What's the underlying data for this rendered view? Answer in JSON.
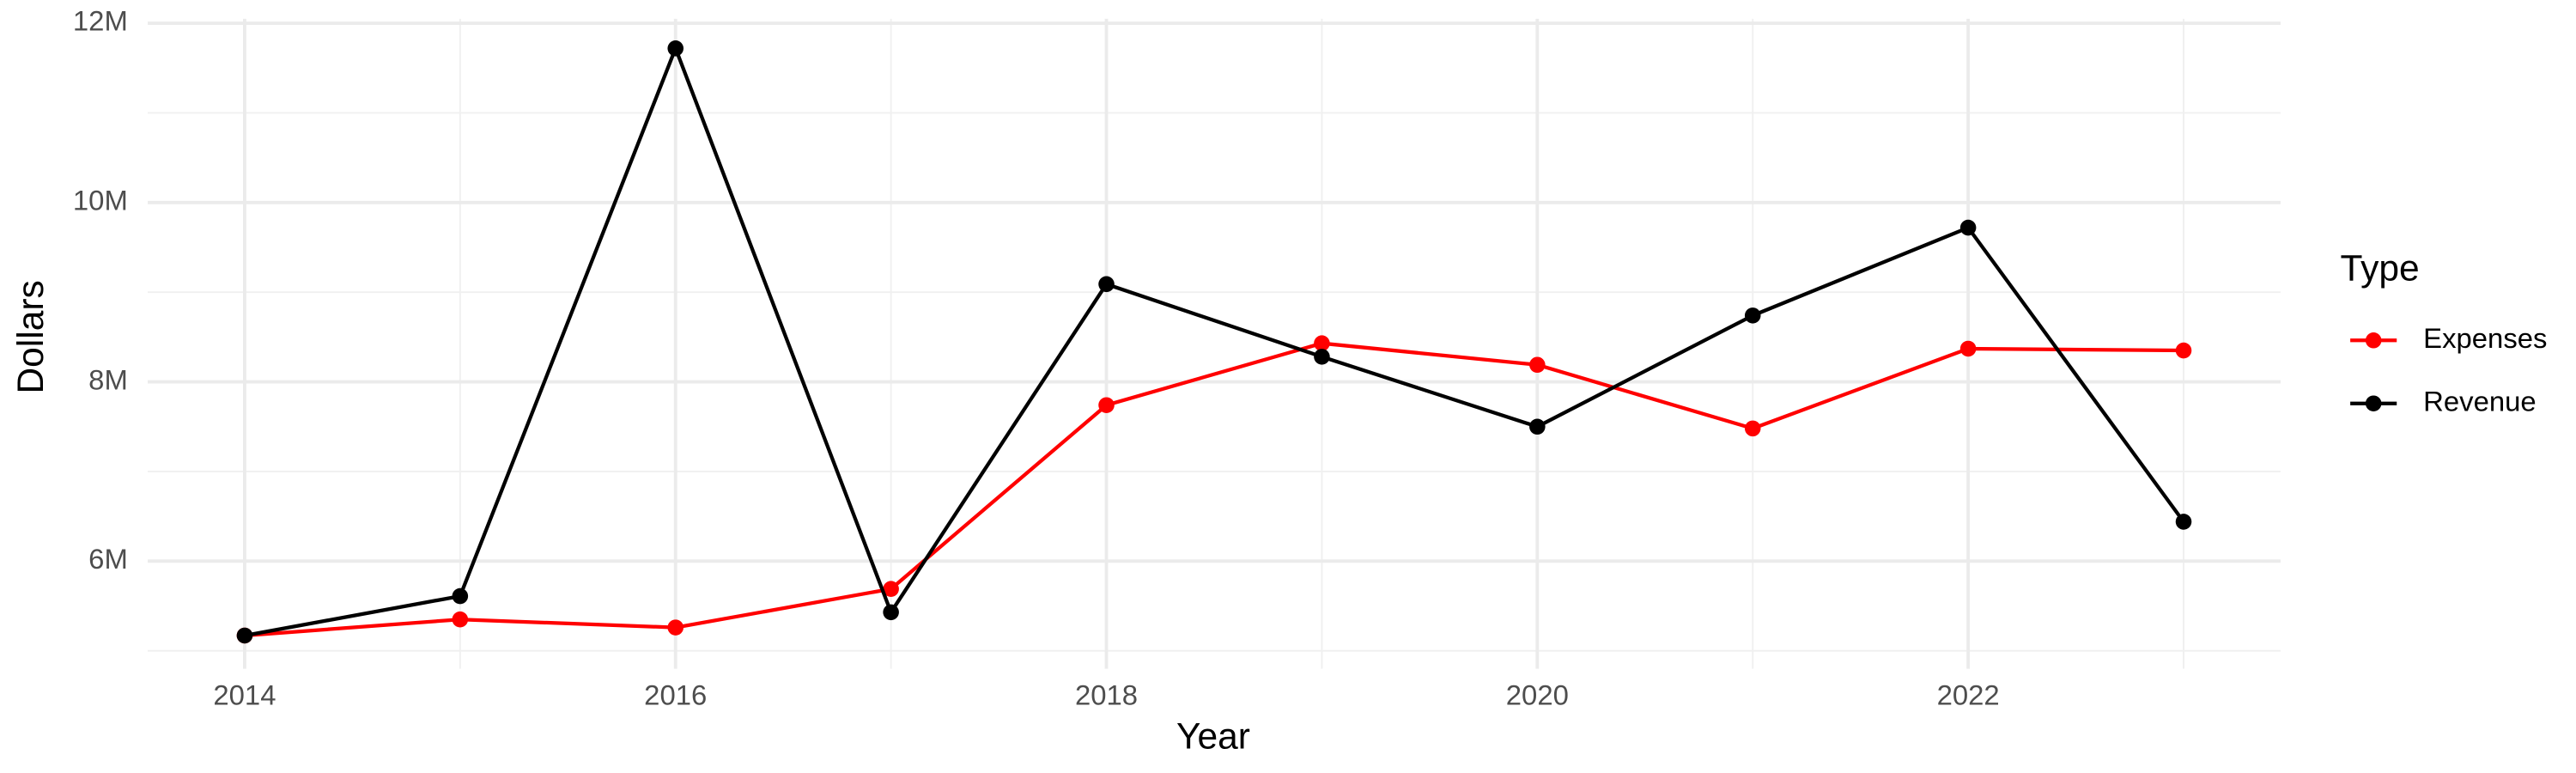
{
  "chart_data": {
    "type": "line",
    "x_label": "Year",
    "y_label": "Dollars",
    "legend_title": "Type",
    "x": [
      2014,
      2015,
      2016,
      2017,
      2018,
      2019,
      2020,
      2021,
      2022,
      2023
    ],
    "series": [
      {
        "name": "Expenses",
        "color": "#ff0000",
        "values": [
          5170000,
          5350000,
          5260000,
          5690000,
          7740000,
          8430000,
          8190000,
          7480000,
          8370000,
          8350000
        ]
      },
      {
        "name": "Revenue",
        "color": "#000000",
        "values": [
          5170000,
          5610000,
          11720000,
          5430000,
          9090000,
          8280000,
          7500000,
          8740000,
          9720000,
          6440000
        ]
      }
    ],
    "xlim": [
      2013.55,
      2023.45
    ],
    "xticks": [
      2014,
      2016,
      2018,
      2020,
      2022
    ],
    "ylim": [
      4800000,
      12050000
    ],
    "yticks": [
      {
        "value": 6000000,
        "label": "6M"
      },
      {
        "value": 8000000,
        "label": "8M"
      },
      {
        "value": 10000000,
        "label": "10M"
      },
      {
        "value": 12000000,
        "label": "12M"
      }
    ],
    "grid": true,
    "legend": "right"
  }
}
